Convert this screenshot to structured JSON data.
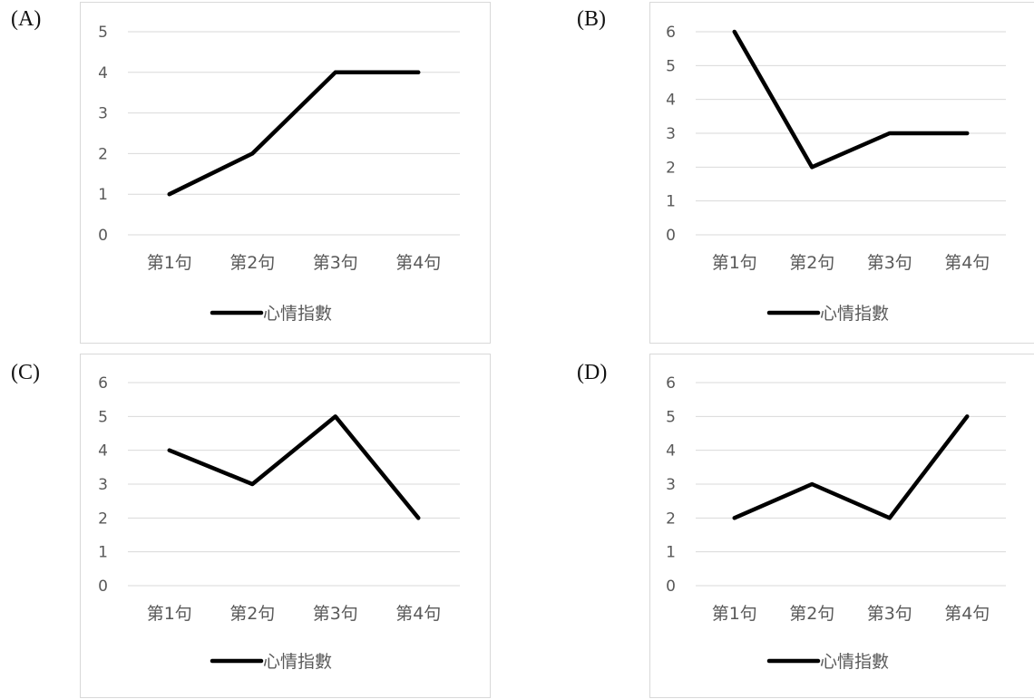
{
  "chart_data": [
    {
      "label": "(A)",
      "type": "line",
      "categories": [
        "第1句",
        "第2句",
        "第3句",
        "第4句"
      ],
      "series": [
        {
          "name": "心情指數",
          "values": [
            1,
            2,
            4,
            4
          ]
        }
      ],
      "ylim": [
        0,
        5
      ],
      "yticks": [
        0,
        1,
        2,
        3,
        4,
        5
      ],
      "grid": true,
      "legend": "bottom",
      "line_color": "#000000"
    },
    {
      "label": "(B)",
      "type": "line",
      "categories": [
        "第1句",
        "第2句",
        "第3句",
        "第4句"
      ],
      "series": [
        {
          "name": "心情指數",
          "values": [
            6,
            2,
            3,
            3
          ]
        }
      ],
      "ylim": [
        0,
        6
      ],
      "yticks": [
        0,
        1,
        2,
        3,
        4,
        5,
        6
      ],
      "grid": true,
      "legend": "bottom",
      "line_color": "#000000"
    },
    {
      "label": "(C)",
      "type": "line",
      "categories": [
        "第1句",
        "第2句",
        "第3句",
        "第4句"
      ],
      "series": [
        {
          "name": "心情指數",
          "values": [
            4,
            3,
            5,
            2
          ]
        }
      ],
      "ylim": [
        0,
        6
      ],
      "yticks": [
        0,
        1,
        2,
        3,
        4,
        5,
        6
      ],
      "grid": true,
      "legend": "bottom",
      "line_color": "#000000"
    },
    {
      "label": "(D)",
      "type": "line",
      "categories": [
        "第1句",
        "第2句",
        "第3句",
        "第4句"
      ],
      "series": [
        {
          "name": "心情指數",
          "values": [
            2,
            3,
            2,
            5
          ]
        }
      ],
      "ylim": [
        0,
        6
      ],
      "yticks": [
        0,
        1,
        2,
        3,
        4,
        5,
        6
      ],
      "grid": true,
      "legend": "bottom",
      "line_color": "#000000"
    }
  ]
}
